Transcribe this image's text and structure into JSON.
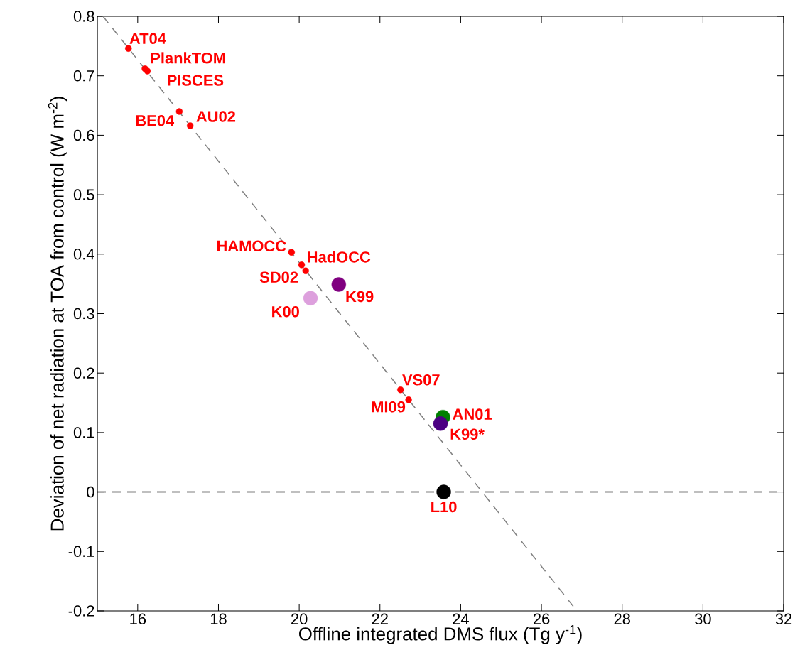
{
  "chart_data": {
    "type": "scatter",
    "xlabel": "Offline integrated DMS flux (Tg y$^{-1}$)",
    "ylabel": "Deviation of net radiation at TOA from control (W m$^{-2}$)",
    "xlim": [
      15,
      32
    ],
    "ylim": [
      -0.2,
      0.8
    ],
    "xticks": [
      16,
      18,
      20,
      22,
      24,
      26,
      28,
      30,
      32
    ],
    "yticks": [
      -0.2,
      -0.1,
      0,
      0.1,
      0.2,
      0.3,
      0.4,
      0.5,
      0.6,
      0.7,
      0.8
    ],
    "grid": false,
    "series": [
      {
        "marker": "circle",
        "color": "#ff0000",
        "x": [
          15.77,
          16.18,
          16.24,
          17.03,
          17.3,
          19.81,
          20.06,
          20.16,
          22.51,
          22.71
        ],
        "values": [
          0.746,
          0.712,
          0.708,
          0.64,
          0.616,
          0.403,
          0.382,
          0.372,
          0.172,
          0.155
        ]
      },
      {
        "marker": "circle",
        "colors": [
          "#800080",
          "#dda0dd",
          "#008000",
          "#4b0082",
          "#000000"
        ],
        "x": [
          20.98,
          20.28,
          23.56,
          23.5,
          23.58
        ],
        "values": [
          0.349,
          0.326,
          0.126,
          0.115,
          0
        ]
      },
      {
        "type": "line",
        "color": "#808080",
        "line_style": "dashed",
        "marker": "none",
        "x": [
          15.14,
          26.88
        ],
        "values": [
          0.8,
          -0.2
        ]
      }
    ],
    "ref_lines": [
      {
        "axis": "y",
        "value": 0,
        "color": "#000000",
        "line_style": "dashed"
      }
    ],
    "annotations": [
      {
        "text": "AT04",
        "x": 15.77,
        "y": 0.746
      },
      {
        "text": "PlankTOM",
        "x": 16.18,
        "y": 0.712
      },
      {
        "text": "PISCES",
        "x": 16.24,
        "y": 0.708
      },
      {
        "text": "BE04",
        "x": 17.03,
        "y": 0.64
      },
      {
        "text": "AU02",
        "x": 17.3,
        "y": 0.616
      },
      {
        "text": "HAMOCC",
        "x": 19.81,
        "y": 0.403
      },
      {
        "text": "HadOCC",
        "x": 20.06,
        "y": 0.382
      },
      {
        "text": "SD02",
        "x": 20.16,
        "y": 0.372
      },
      {
        "text": "VS07",
        "x": 22.51,
        "y": 0.172
      },
      {
        "text": "MI09",
        "x": 22.71,
        "y": 0.155
      },
      {
        "text": "K99",
        "x": 20.98,
        "y": 0.349
      },
      {
        "text": "K00",
        "x": 20.28,
        "y": 0.326
      },
      {
        "text": "AN01",
        "x": 23.56,
        "y": 0.126
      },
      {
        "text": "K99*",
        "x": 23.5,
        "y": 0.115
      },
      {
        "text": "L10",
        "x": 23.58,
        "y": 0
      }
    ]
  }
}
